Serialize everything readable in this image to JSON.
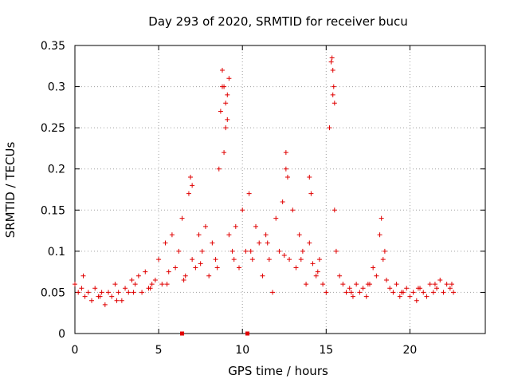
{
  "chart_data": {
    "type": "scatter",
    "title": "Day 293 of 2020, SRMTID for receiver bucu",
    "xlabel": "GPS time / hours",
    "ylabel": "SRMTID / TECUs",
    "xlim": [
      0,
      24.5
    ],
    "ylim": [
      0,
      0.35
    ],
    "x_ticks": [
      0,
      5,
      10,
      15,
      20
    ],
    "x_tick_labels": [
      "0",
      "5",
      "10",
      "15",
      "20"
    ],
    "y_ticks": [
      0,
      0.05,
      0.1,
      0.15,
      0.2,
      0.25,
      0.3,
      0.35
    ],
    "y_tick_labels": [
      "0",
      "0.05",
      "0.1",
      "0.15",
      "0.2",
      "0.25",
      "0.3",
      "0.35"
    ],
    "grid": true,
    "marker": "+",
    "color": "#e00000",
    "series": [
      {
        "name": "SRMTID",
        "x": [
          0.0,
          0.2,
          0.4,
          0.6,
          0.8,
          1.0,
          1.2,
          1.4,
          1.6,
          1.8,
          2.0,
          2.2,
          2.4,
          2.6,
          2.8,
          3.0,
          3.2,
          3.4,
          3.6,
          3.8,
          4.0,
          4.2,
          4.4,
          4.6,
          4.8,
          5.0,
          5.2,
          5.4,
          5.6,
          5.8,
          6.0,
          6.2,
          6.4,
          6.6,
          6.8,
          7.0,
          7.2,
          7.4,
          7.6,
          7.8,
          8.0,
          8.2,
          8.4,
          8.6,
          8.7,
          8.8,
          8.9,
          9.0,
          9.1,
          9.2,
          9.4,
          9.6,
          9.8,
          10.0,
          10.2,
          10.4,
          10.6,
          10.8,
          11.0,
          11.2,
          11.4,
          11.6,
          11.8,
          12.0,
          12.2,
          12.4,
          12.6,
          12.8,
          13.0,
          13.2,
          13.4,
          13.6,
          13.8,
          14.0,
          14.2,
          14.4,
          14.6,
          14.8,
          15.0,
          15.2,
          15.3,
          15.4,
          15.5,
          15.6,
          15.8,
          16.0,
          16.2,
          16.4,
          16.6,
          16.8,
          17.0,
          17.2,
          17.4,
          17.6,
          17.8,
          18.0,
          18.2,
          18.4,
          18.6,
          18.8,
          19.0,
          19.2,
          19.4,
          19.6,
          19.8,
          20.0,
          20.2,
          20.4,
          20.6,
          20.8,
          21.0,
          21.2,
          21.4,
          21.6,
          21.8,
          22.0,
          22.2,
          22.4,
          22.6,
          0.5,
          1.5,
          2.5,
          3.5,
          4.5,
          5.5,
          6.5,
          7.5,
          8.5,
          9.5,
          10.5,
          11.5,
          12.5,
          13.5,
          14.5,
          16.5,
          17.5,
          18.5,
          19.5,
          20.5,
          21.5,
          22.5,
          8.8,
          8.9,
          9.0,
          9.1,
          9.2,
          15.35,
          15.4,
          15.45,
          15.5,
          12.6,
          12.7,
          14.0,
          14.1,
          6.9,
          7.0,
          18.3
        ],
        "y": [
          0.06,
          0.05,
          0.055,
          0.045,
          0.05,
          0.04,
          0.055,
          0.045,
          0.05,
          0.035,
          0.05,
          0.045,
          0.06,
          0.05,
          0.04,
          0.055,
          0.05,
          0.065,
          0.06,
          0.07,
          0.05,
          0.075,
          0.055,
          0.06,
          0.065,
          0.09,
          0.06,
          0.11,
          0.075,
          0.12,
          0.08,
          0.1,
          0.14,
          0.07,
          0.17,
          0.09,
          0.08,
          0.12,
          0.1,
          0.13,
          0.07,
          0.11,
          0.09,
          0.2,
          0.27,
          0.3,
          0.22,
          0.25,
          0.29,
          0.12,
          0.1,
          0.13,
          0.08,
          0.15,
          0.1,
          0.17,
          0.09,
          0.13,
          0.11,
          0.07,
          0.12,
          0.09,
          0.05,
          0.14,
          0.1,
          0.16,
          0.2,
          0.09,
          0.15,
          0.08,
          0.12,
          0.1,
          0.06,
          0.11,
          0.085,
          0.07,
          0.09,
          0.06,
          0.05,
          0.25,
          0.33,
          0.29,
          0.15,
          0.1,
          0.07,
          0.06,
          0.05,
          0.055,
          0.045,
          0.06,
          0.05,
          0.055,
          0.045,
          0.06,
          0.08,
          0.07,
          0.12,
          0.09,
          0.065,
          0.055,
          0.05,
          0.06,
          0.045,
          0.05,
          0.055,
          0.045,
          0.05,
          0.04,
          0.055,
          0.05,
          0.045,
          0.06,
          0.05,
          0.055,
          0.065,
          0.05,
          0.06,
          0.055,
          0.05,
          0.07,
          0.045,
          0.04,
          0.05,
          0.055,
          0.06,
          0.065,
          0.085,
          0.08,
          0.09,
          0.1,
          0.11,
          0.095,
          0.09,
          0.075,
          0.05,
          0.06,
          0.1,
          0.05,
          0.055,
          0.06,
          0.06,
          0.32,
          0.3,
          0.28,
          0.26,
          0.31,
          0.335,
          0.32,
          0.3,
          0.28,
          0.22,
          0.19,
          0.19,
          0.17,
          0.19,
          0.18,
          0.14
        ]
      }
    ],
    "markers_on_axis": [
      6.4,
      10.3
    ]
  }
}
